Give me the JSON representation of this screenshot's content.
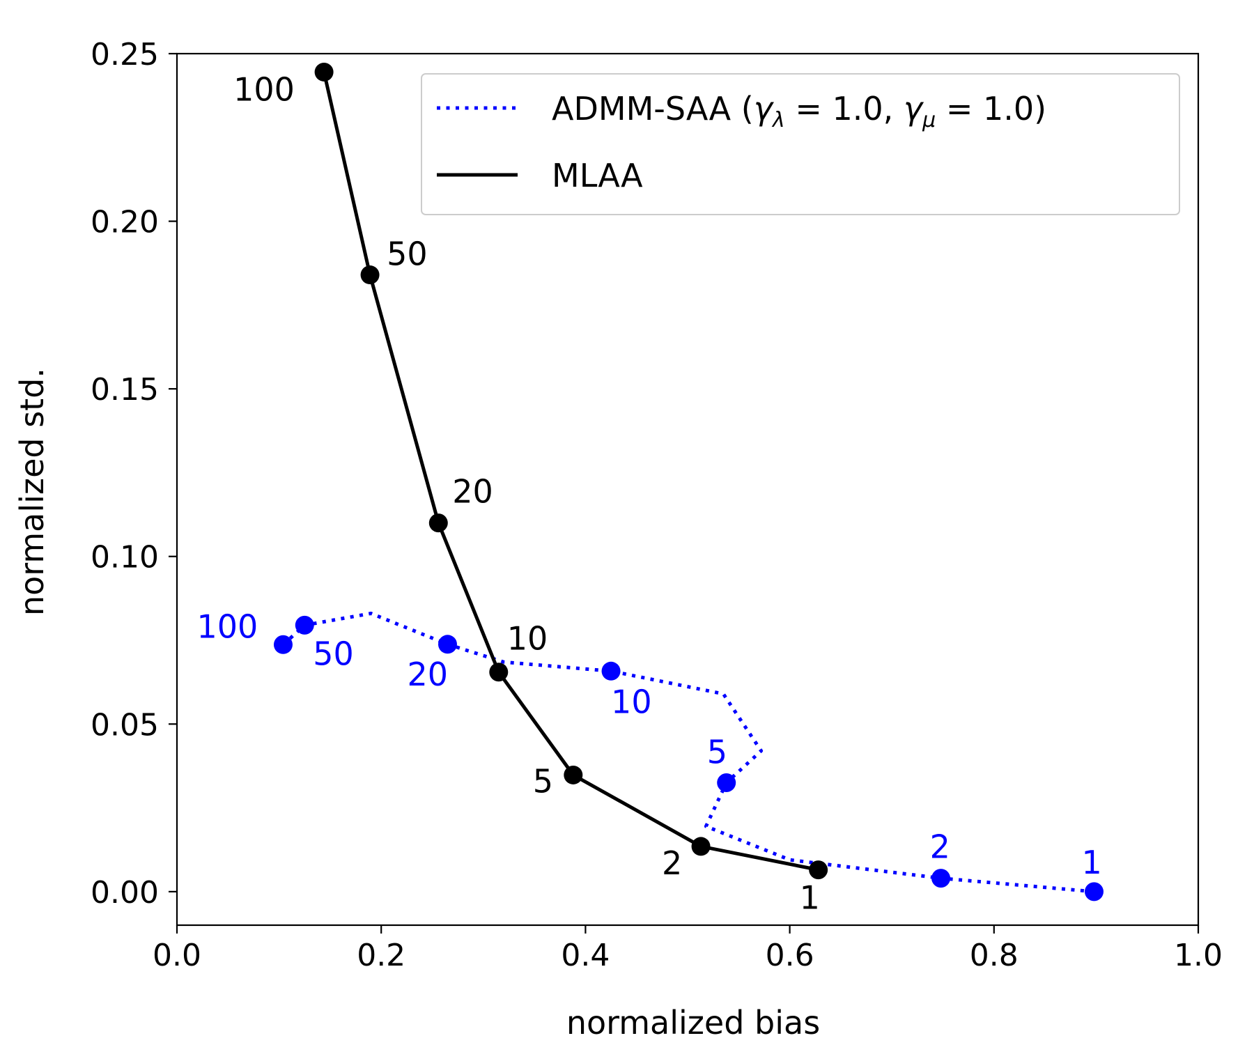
{
  "chart_data": {
    "type": "line",
    "title": "",
    "xlabel": "normalized bias",
    "ylabel": "normalized std.",
    "xlim": [
      0.0,
      1.0
    ],
    "ylim": [
      -0.01,
      0.25
    ],
    "xticks": [
      "0.0",
      "0.2",
      "0.4",
      "0.6",
      "0.8",
      "1.0"
    ],
    "yticks": [
      "0.00",
      "0.05",
      "0.10",
      "0.15",
      "0.20",
      "0.25"
    ],
    "grid": false,
    "legend_position": "top-right",
    "colors": {
      "admm": "#0000ff",
      "mlaa": "#000000"
    },
    "series": [
      {
        "name": "ADMM-SAA (γλ = 1.0, γμ = 1.0)",
        "legend_main": "ADMM-SAA (",
        "legend_gamma1": "γ",
        "legend_sub1": "λ",
        "legend_eq1": " = 1.0, ",
        "legend_gamma2": "γ",
        "legend_sub2": "μ",
        "legend_eq2": " = 1.0)",
        "style": "dotted",
        "color": "#0000ff",
        "line": [
          {
            "x": 0.104,
            "y": 0.0737
          },
          {
            "x": 0.125,
            "y": 0.0795
          },
          {
            "x": 0.19,
            "y": 0.083
          },
          {
            "x": 0.265,
            "y": 0.0738
          },
          {
            "x": 0.32,
            "y": 0.0685
          },
          {
            "x": 0.425,
            "y": 0.0658
          },
          {
            "x": 0.535,
            "y": 0.059
          },
          {
            "x": 0.572,
            "y": 0.042
          },
          {
            "x": 0.538,
            "y": 0.0325
          },
          {
            "x": 0.518,
            "y": 0.0195
          },
          {
            "x": 0.6,
            "y": 0.0095
          },
          {
            "x": 0.748,
            "y": 0.004
          },
          {
            "x": 0.898,
            "y": 0.0
          }
        ],
        "markers": [
          {
            "x": 0.104,
            "y": 0.0737,
            "label": "100"
          },
          {
            "x": 0.125,
            "y": 0.0795,
            "label": "50"
          },
          {
            "x": 0.265,
            "y": 0.0738,
            "label": "20"
          },
          {
            "x": 0.425,
            "y": 0.0658,
            "label": "10"
          },
          {
            "x": 0.538,
            "y": 0.0325,
            "label": "5"
          },
          {
            "x": 0.748,
            "y": 0.004,
            "label": "2"
          },
          {
            "x": 0.898,
            "y": 0.0,
            "label": "1"
          }
        ]
      },
      {
        "name": "MLAA",
        "style": "solid",
        "color": "#000000",
        "line": [
          {
            "x": 0.144,
            "y": 0.2445
          },
          {
            "x": 0.189,
            "y": 0.184
          },
          {
            "x": 0.256,
            "y": 0.11
          },
          {
            "x": 0.315,
            "y": 0.0655
          },
          {
            "x": 0.388,
            "y": 0.0348
          },
          {
            "x": 0.513,
            "y": 0.0135
          },
          {
            "x": 0.628,
            "y": 0.0065
          }
        ],
        "markers": [
          {
            "x": 0.144,
            "y": 0.2445,
            "label": "100"
          },
          {
            "x": 0.189,
            "y": 0.184,
            "label": "50"
          },
          {
            "x": 0.256,
            "y": 0.11,
            "label": "20"
          },
          {
            "x": 0.315,
            "y": 0.0655,
            "label": "10"
          },
          {
            "x": 0.388,
            "y": 0.0348,
            "label": "5"
          },
          {
            "x": 0.513,
            "y": 0.0135,
            "label": "2"
          },
          {
            "x": 0.628,
            "y": 0.0065,
            "label": "1"
          }
        ]
      }
    ]
  }
}
